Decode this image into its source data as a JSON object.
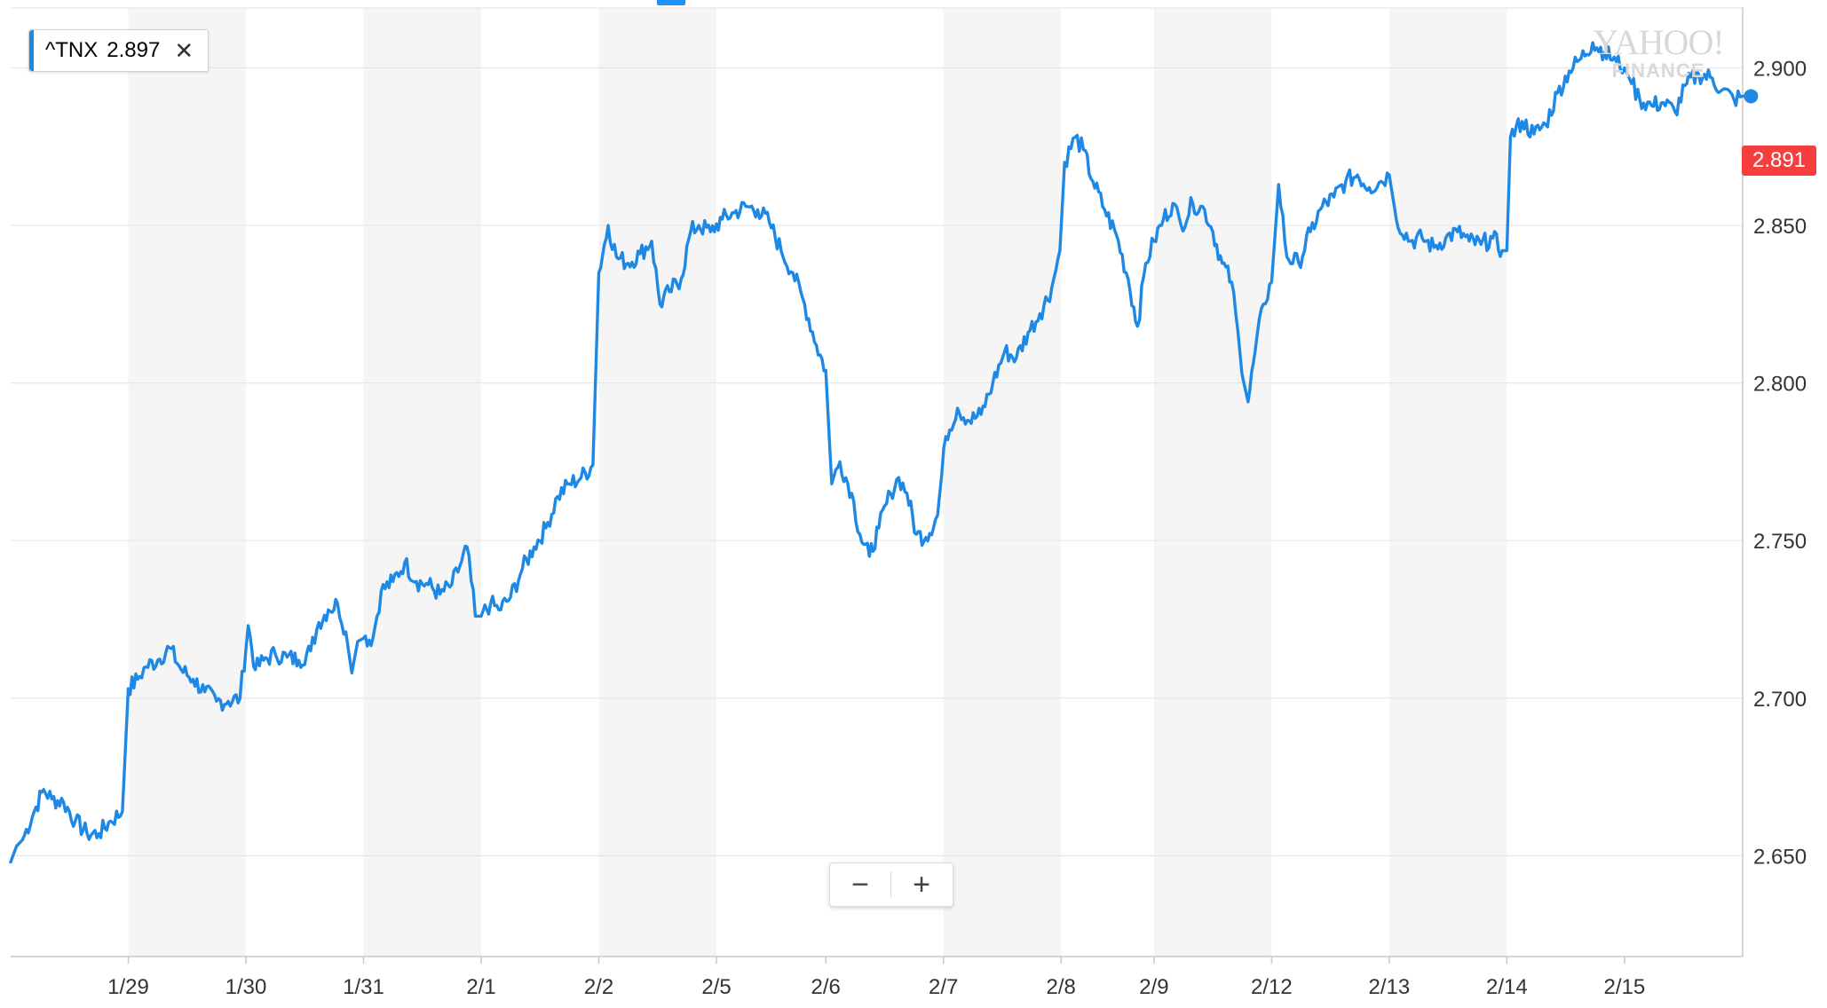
{
  "legend": {
    "symbol": "^TNX",
    "value": "2.897",
    "close_glyph": "✕",
    "color": "#1e88e5"
  },
  "watermark": {
    "line1": "YAHOO!",
    "line2": "FINANCE"
  },
  "price_badge": {
    "value": "2.891",
    "color": "#f53f3f"
  },
  "zoom": {
    "minus_glyph": "−",
    "plus_glyph": "+"
  },
  "chart_data": {
    "type": "line",
    "title": "",
    "xlabel": "",
    "ylabel": "",
    "ylim": [
      2.618,
      2.919
    ],
    "grid": true,
    "y_axis_position": "right",
    "line_color": "#1e88e5",
    "y_ticks": [
      "2.650",
      "2.700",
      "2.750",
      "2.800",
      "2.850",
      "2.900"
    ],
    "x_ticks": [
      "1/29",
      "1/30",
      "1/31",
      "2/1",
      "2/2",
      "2/5",
      "2/6",
      "2/7",
      "2/8",
      "2/9",
      "2/12",
      "2/13",
      "2/14",
      "2/15"
    ],
    "day_boundaries": [
      0.0,
      1.0,
      2.0,
      3.0,
      4.0,
      5.0,
      6.0,
      6.93,
      7.93,
      8.93,
      9.72,
      10.72,
      11.72,
      12.72,
      13.72,
      14.9
    ],
    "shaded_days": [
      1,
      3,
      5,
      8,
      10,
      12
    ],
    "series": [
      {
        "values": [
          [
            0.0,
            2.648
          ],
          [
            0.05,
            2.653
          ],
          [
            0.1,
            2.655
          ],
          [
            0.2,
            2.664
          ],
          [
            0.28,
            2.671
          ],
          [
            0.35,
            2.668
          ],
          [
            0.45,
            2.667
          ],
          [
            0.55,
            2.661
          ],
          [
            0.65,
            2.657
          ],
          [
            0.75,
            2.657
          ],
          [
            0.85,
            2.661
          ],
          [
            0.95,
            2.664
          ],
          [
            1.0,
            2.703
          ],
          [
            1.08,
            2.706
          ],
          [
            1.15,
            2.71
          ],
          [
            1.25,
            2.712
          ],
          [
            1.35,
            2.716
          ],
          [
            1.45,
            2.709
          ],
          [
            1.55,
            2.706
          ],
          [
            1.65,
            2.702
          ],
          [
            1.75,
            2.699
          ],
          [
            1.85,
            2.699
          ],
          [
            1.95,
            2.7
          ],
          [
            2.02,
            2.723
          ],
          [
            2.08,
            2.709
          ],
          [
            2.15,
            2.712
          ],
          [
            2.25,
            2.714
          ],
          [
            2.35,
            2.713
          ],
          [
            2.45,
            2.712
          ],
          [
            2.55,
            2.715
          ],
          [
            2.62,
            2.724
          ],
          [
            2.7,
            2.728
          ],
          [
            2.78,
            2.73
          ],
          [
            2.85,
            2.721
          ],
          [
            2.9,
            2.708
          ],
          [
            2.95,
            2.718
          ],
          [
            3.0,
            2.719
          ],
          [
            3.08,
            2.719
          ],
          [
            3.15,
            2.734
          ],
          [
            3.25,
            2.737
          ],
          [
            3.35,
            2.743
          ],
          [
            3.45,
            2.737
          ],
          [
            3.55,
            2.736
          ],
          [
            3.65,
            2.733
          ],
          [
            3.75,
            2.736
          ],
          [
            3.82,
            2.742
          ],
          [
            3.88,
            2.748
          ],
          [
            3.95,
            2.726
          ],
          [
            4.0,
            2.726
          ],
          [
            4.08,
            2.73
          ],
          [
            4.15,
            2.728
          ],
          [
            4.25,
            2.732
          ],
          [
            4.35,
            2.741
          ],
          [
            4.45,
            2.748
          ],
          [
            4.55,
            2.754
          ],
          [
            4.65,
            2.764
          ],
          [
            4.75,
            2.768
          ],
          [
            4.85,
            2.77
          ],
          [
            4.95,
            2.774
          ],
          [
            5.0,
            2.835
          ],
          [
            5.08,
            2.85
          ],
          [
            5.15,
            2.84
          ],
          [
            5.25,
            2.838
          ],
          [
            5.35,
            2.841
          ],
          [
            5.45,
            2.845
          ],
          [
            5.52,
            2.825
          ],
          [
            5.6,
            2.829
          ],
          [
            5.7,
            2.833
          ],
          [
            5.78,
            2.848
          ],
          [
            5.85,
            2.85
          ],
          [
            5.95,
            2.848
          ],
          [
            6.05,
            2.852
          ],
          [
            6.15,
            2.854
          ],
          [
            6.25,
            2.856
          ],
          [
            6.35,
            2.855
          ],
          [
            6.45,
            2.851
          ],
          [
            6.55,
            2.842
          ],
          [
            6.65,
            2.835
          ],
          [
            6.75,
            2.825
          ],
          [
            6.85,
            2.812
          ],
          [
            6.93,
            2.804
          ],
          [
            6.98,
            2.768
          ],
          [
            7.05,
            2.775
          ],
          [
            7.15,
            2.765
          ],
          [
            7.22,
            2.752
          ],
          [
            7.3,
            2.745
          ],
          [
            7.38,
            2.754
          ],
          [
            7.48,
            2.765
          ],
          [
            7.55,
            2.77
          ],
          [
            7.62,
            2.765
          ],
          [
            7.7,
            2.752
          ],
          [
            7.78,
            2.751
          ],
          [
            7.88,
            2.758
          ],
          [
            7.95,
            2.783
          ],
          [
            8.05,
            2.792
          ],
          [
            8.15,
            2.788
          ],
          [
            8.25,
            2.79
          ],
          [
            8.35,
            2.8
          ],
          [
            8.45,
            2.81
          ],
          [
            8.55,
            2.808
          ],
          [
            8.65,
            2.816
          ],
          [
            8.75,
            2.822
          ],
          [
            8.85,
            2.83
          ],
          [
            8.92,
            2.842
          ],
          [
            8.96,
            2.87
          ],
          [
            9.05,
            2.878
          ],
          [
            9.12,
            2.874
          ],
          [
            9.2,
            2.864
          ],
          [
            9.3,
            2.855
          ],
          [
            9.4,
            2.847
          ],
          [
            9.5,
            2.833
          ],
          [
            9.58,
            2.818
          ],
          [
            9.65,
            2.838
          ],
          [
            9.72,
            2.845
          ],
          [
            9.8,
            2.852
          ],
          [
            9.88,
            2.857
          ],
          [
            9.95,
            2.85
          ],
          [
            10.05,
            2.857
          ],
          [
            10.15,
            2.855
          ],
          [
            10.22,
            2.848
          ],
          [
            10.3,
            2.838
          ],
          [
            10.38,
            2.832
          ],
          [
            10.45,
            2.81
          ],
          [
            10.52,
            2.794
          ],
          [
            10.58,
            2.81
          ],
          [
            10.65,
            2.825
          ],
          [
            10.72,
            2.832
          ],
          [
            10.78,
            2.863
          ],
          [
            10.85,
            2.84
          ],
          [
            10.95,
            2.838
          ],
          [
            11.05,
            2.848
          ],
          [
            11.15,
            2.856
          ],
          [
            11.25,
            2.859
          ],
          [
            11.35,
            2.864
          ],
          [
            11.45,
            2.866
          ],
          [
            11.55,
            2.862
          ],
          [
            11.65,
            2.864
          ],
          [
            11.72,
            2.866
          ],
          [
            11.78,
            2.852
          ],
          [
            11.9,
            2.845
          ],
          [
            12.0,
            2.846
          ],
          [
            12.1,
            2.843
          ],
          [
            12.2,
            2.846
          ],
          [
            12.3,
            2.848
          ],
          [
            12.4,
            2.845
          ],
          [
            12.5,
            2.844
          ],
          [
            12.6,
            2.846
          ],
          [
            12.68,
            2.842
          ],
          [
            12.72,
            2.842
          ],
          [
            12.75,
            2.878
          ],
          [
            12.85,
            2.883
          ],
          [
            12.95,
            2.879
          ],
          [
            13.05,
            2.882
          ],
          [
            13.15,
            2.892
          ],
          [
            13.25,
            2.899
          ],
          [
            13.35,
            2.903
          ],
          [
            13.45,
            2.908
          ],
          [
            13.55,
            2.905
          ],
          [
            13.65,
            2.902
          ],
          [
            13.72,
            2.9
          ],
          [
            13.78,
            2.895
          ],
          [
            13.85,
            2.89
          ],
          [
            13.95,
            2.888
          ],
          [
            14.05,
            2.889
          ],
          [
            14.15,
            2.886
          ],
          [
            14.25,
            2.895
          ],
          [
            14.35,
            2.898
          ],
          [
            14.45,
            2.897
          ],
          [
            14.55,
            2.893
          ],
          [
            14.65,
            2.89
          ],
          [
            14.72,
            2.891
          ],
          [
            14.78,
            2.891
          ]
        ]
      }
    ]
  }
}
